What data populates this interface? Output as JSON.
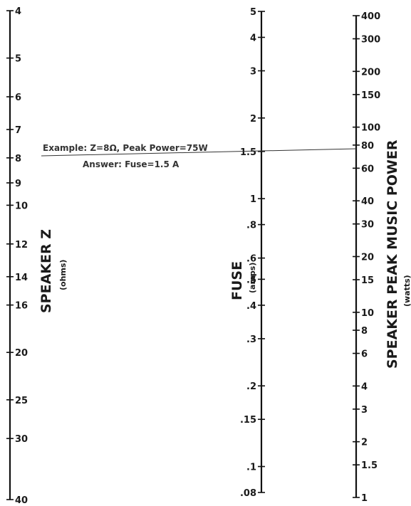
{
  "scales": [
    {
      "id": "speaker-z",
      "title": "SPEAKER Z",
      "unit": "(ohms)",
      "min": 4,
      "max": 40,
      "major_ticks": [
        4,
        5,
        6,
        7,
        8,
        9,
        10,
        12,
        14,
        16,
        20,
        25,
        30,
        40
      ],
      "labels": [
        "4",
        "5",
        "6",
        "7",
        "8",
        "9",
        "10",
        "12",
        "14",
        "16",
        "20",
        "25",
        "30",
        "40"
      ],
      "label_side": "right"
    },
    {
      "id": "fuse",
      "title": "FUSE",
      "unit": "(amps)",
      "min": 0.08,
      "max": 5,
      "major_ticks": [
        5,
        4,
        3,
        2,
        1.5,
        1,
        0.8,
        0.6,
        0.5,
        0.4,
        0.3,
        0.2,
        0.15,
        0.1,
        0.08
      ],
      "labels": [
        "5",
        "4",
        "3",
        "2",
        "1.5",
        "1",
        ".8",
        ".6",
        ".5",
        ".4",
        ".3",
        ".2",
        ".15",
        ".1",
        ".08"
      ],
      "label_side": "left"
    },
    {
      "id": "peak-power",
      "title": "SPEAKER PEAK MUSIC POWER",
      "unit": "(watts)",
      "min": 1,
      "max": 400,
      "major_ticks": [
        400,
        300,
        200,
        150,
        100,
        80,
        60,
        40,
        30,
        20,
        15,
        10,
        8,
        6,
        4,
        3,
        2,
        1.5,
        1
      ],
      "labels": [
        "400",
        "300",
        "200",
        "150",
        "100",
        "80",
        "60",
        "40",
        "30",
        "20",
        "15",
        "10",
        "8",
        "6",
        "4",
        "3",
        "2",
        "1.5",
        "1"
      ],
      "label_side": "right"
    }
  ],
  "example": {
    "line1": "Example:  Z=8Ω, Peak Power=75W",
    "line2": "Answer:  Fuse=1.5 A",
    "z_ohms": 8,
    "power_watts": 75,
    "fuse_amps": 1.5
  }
}
